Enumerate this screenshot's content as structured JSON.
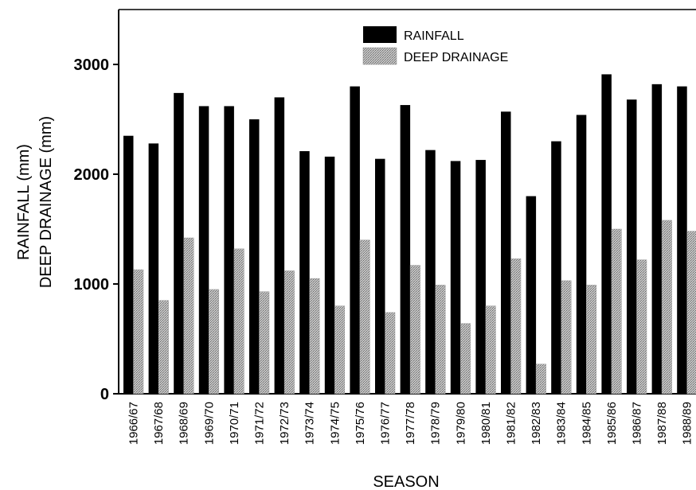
{
  "chart_data": {
    "type": "bar",
    "categories": [
      "1966/67",
      "1967/68",
      "1968/69",
      "1969/70",
      "1970/71",
      "1971/72",
      "1972/73",
      "1973/74",
      "1974/75",
      "1975/76",
      "1976/77",
      "1977/78",
      "1978/79",
      "1979/80",
      "1980/81",
      "1981/82",
      "1982/83",
      "1983/84",
      "1984/85",
      "1985/86",
      "1986/87",
      "1987/88",
      "1988/89"
    ],
    "series": [
      {
        "name": "RAINFALL",
        "color": "#000000",
        "values": [
          2350,
          2280,
          2740,
          2620,
          2620,
          2500,
          2700,
          2210,
          2160,
          2800,
          2140,
          2630,
          2220,
          2120,
          2130,
          2570,
          1800,
          2300,
          2540,
          2910,
          2680,
          2820,
          2800
        ]
      },
      {
        "name": "DEEP DRAINAGE",
        "color": "#b0b0b0",
        "values": [
          1130,
          850,
          1420,
          950,
          1320,
          930,
          1120,
          1050,
          800,
          1400,
          740,
          1170,
          990,
          640,
          800,
          1230,
          270,
          1030,
          990,
          1500,
          1220,
          1580,
          1480
        ]
      }
    ],
    "ylim": [
      0,
      3500
    ],
    "yticks": [
      0,
      1000,
      2000,
      3000
    ],
    "ytick_labels": [
      "0",
      "1000",
      "2000",
      "3000"
    ],
    "ylabel_line1": "RAINFALL (mm)",
    "ylabel_line2": "DEEP DRAINAGE (mm)",
    "xlabel": "SEASON",
    "grid": false,
    "legend_position": "top-center"
  }
}
